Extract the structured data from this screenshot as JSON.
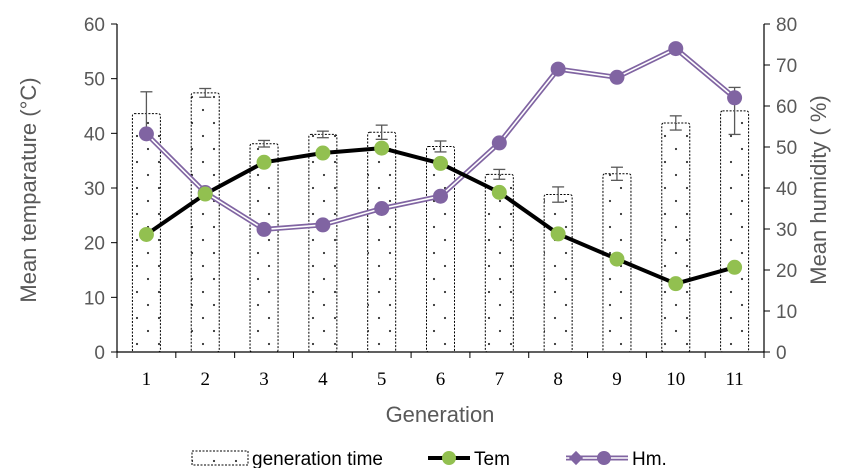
{
  "chart_data": {
    "type": "bar+line",
    "categories": [
      "1",
      "2",
      "3",
      "4",
      "5",
      "6",
      "7",
      "8",
      "9",
      "10",
      "11"
    ],
    "xlabel": "Generation",
    "ylabel_left": "Mean temparature (°C)",
    "ylabel_right": "Mean humidity ( %)",
    "ylim_left": [
      0,
      60
    ],
    "ylim_right": [
      0,
      80
    ],
    "yticks_left": [
      "0",
      "10",
      "20",
      "30",
      "40",
      "50",
      "60"
    ],
    "yticks_right": [
      "0",
      "10",
      "20",
      "30",
      "40",
      "50",
      "60",
      "70",
      "80"
    ],
    "grid": false,
    "legend_position": "bottom",
    "series": [
      {
        "name": "generation time",
        "kind": "bar",
        "axis": "left",
        "values": [
          43.6,
          47.4,
          38.1,
          39.8,
          40.2,
          37.6,
          32.5,
          28.8,
          32.6,
          41.9,
          44.1
        ],
        "errors": [
          4.0,
          0.8,
          0.6,
          0.6,
          1.3,
          1.0,
          0.9,
          1.4,
          1.2,
          1.3,
          4.3
        ],
        "color": "#000000"
      },
      {
        "name": "Tem",
        "kind": "line",
        "axis": "left",
        "values": [
          21.5,
          28.9,
          34.7,
          36.4,
          37.3,
          34.5,
          29.2,
          21.6,
          17.0,
          12.5,
          15.5
        ],
        "line_color": "#000000",
        "marker_color": "#92C050"
      },
      {
        "name": "Hm.",
        "kind": "line",
        "axis": "right",
        "values": [
          53.2,
          38.9,
          29.9,
          31.0,
          35.0,
          38.0,
          51.0,
          69.0,
          67.0,
          74.0,
          62.0
        ],
        "line_color": "#8064A2",
        "marker_color": "#8064A2"
      }
    ]
  }
}
